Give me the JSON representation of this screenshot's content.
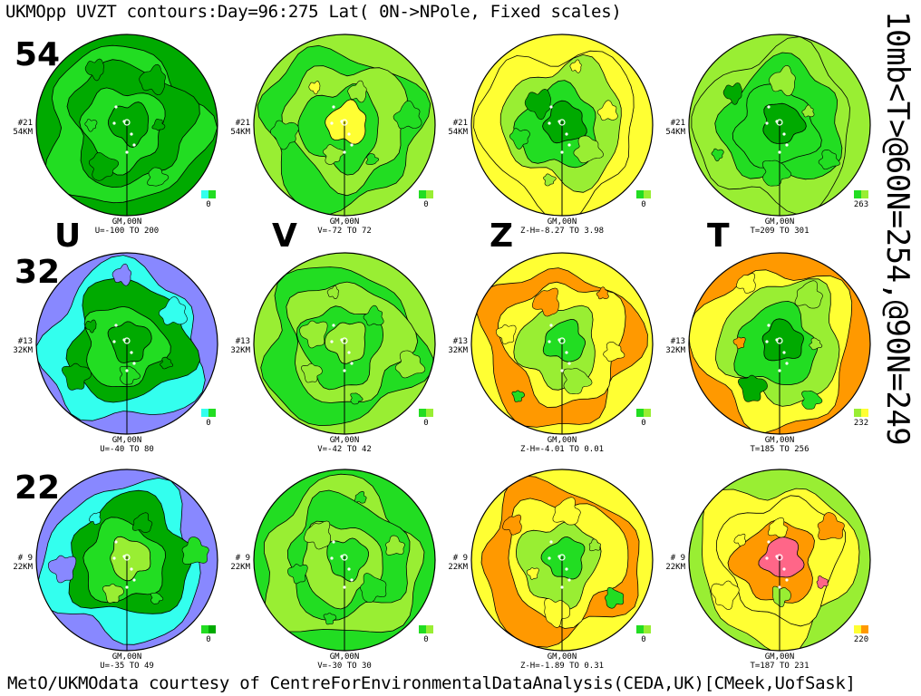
{
  "header": {
    "title": "UKMOpp UVZT contours:Day=96:275 Lat( 0N->NPole, Fixed scales)"
  },
  "side_label": "10mb<T>@60N=254,@90N=249",
  "footer": {
    "credit": "MetO/UKMOdata courtesy of CentreForEnvironmentalDataAnalysis(CEDA,UK)[CMeek,UofSask]"
  },
  "variable_letters": [
    "U",
    "V",
    "Z",
    "T"
  ],
  "row_altitudes": [
    "54",
    "32",
    "22"
  ],
  "colors": {
    "cyan": "#33ffee",
    "blue": "#8888ff",
    "dark_blue": "#2222ee",
    "dark_green": "#00aa00",
    "green": "#22dd22",
    "light_green": "#99ee33",
    "yellow": "#ffff33",
    "orange": "#ff9900",
    "pink": "#ff6688"
  },
  "chart_data": [
    {
      "type": "heatmap",
      "projection": "polar-stereographic",
      "variable": "U",
      "level_code": "#21",
      "level_km": "54KM",
      "meridian_label": "GM,00N",
      "range_label": "U=-100 TO 200",
      "key_value": "0",
      "key_colors": [
        "cyan",
        "green"
      ],
      "bands": [
        "dark_green",
        "green",
        "dark_green",
        "green",
        "dark_green"
      ]
    },
    {
      "type": "heatmap",
      "projection": "polar-stereographic",
      "variable": "V",
      "level_code": "#21",
      "level_km": "54KM",
      "meridian_label": "GM,00N",
      "range_label": "V=-72 TO  72",
      "key_value": "0",
      "key_colors": [
        "green",
        "light_green"
      ],
      "bands": [
        "light_green",
        "green",
        "light_green",
        "green",
        "yellow"
      ]
    },
    {
      "type": "heatmap",
      "projection": "polar-stereographic",
      "variable": "Z",
      "level_code": "#21",
      "level_km": "54KM",
      "meridian_label": "GM,00N",
      "range_label": "Z-H=-8.27 TO 3.98",
      "key_value": "0",
      "key_colors": [
        "green",
        "light_green"
      ],
      "bands": [
        "yellow",
        "yellow",
        "light_green",
        "green",
        "dark_green"
      ]
    },
    {
      "type": "heatmap",
      "projection": "polar-stereographic",
      "variable": "T",
      "level_code": "#21",
      "level_km": "54KM",
      "meridian_label": "GM,00N",
      "range_label": "T=209 TO 301",
      "key_value": "263",
      "key_colors": [
        "green",
        "light_green"
      ],
      "bands": [
        "light_green",
        "light_green",
        "green",
        "green",
        "dark_green"
      ]
    },
    {
      "type": "heatmap",
      "projection": "polar-stereographic",
      "variable": "U",
      "level_code": "#13",
      "level_km": "32KM",
      "meridian_label": "GM,00N",
      "range_label": "U=-40 TO  80",
      "key_value": "0",
      "key_colors": [
        "cyan",
        "green"
      ],
      "bands": [
        "blue",
        "cyan",
        "dark_green",
        "green",
        "dark_green"
      ]
    },
    {
      "type": "heatmap",
      "projection": "polar-stereographic",
      "variable": "V",
      "level_code": "#13",
      "level_km": "32KM",
      "meridian_label": "GM,00N",
      "range_label": "V=-42 TO  42",
      "key_value": "0",
      "key_colors": [
        "green",
        "light_green"
      ],
      "bands": [
        "light_green",
        "green",
        "light_green",
        "green",
        "light_green"
      ]
    },
    {
      "type": "heatmap",
      "projection": "polar-stereographic",
      "variable": "Z",
      "level_code": "#13",
      "level_km": "32KM",
      "meridian_label": "GM,00N",
      "range_label": "Z-H=-4.01 TO 0.01",
      "key_value": "0",
      "key_colors": [
        "green",
        "light_green"
      ],
      "bands": [
        "yellow",
        "orange",
        "yellow",
        "light_green",
        "green"
      ]
    },
    {
      "type": "heatmap",
      "projection": "polar-stereographic",
      "variable": "T",
      "level_code": "#13",
      "level_km": "32KM",
      "meridian_label": "GM,00N",
      "range_label": "T=185 TO 256",
      "key_value": "232",
      "key_colors": [
        "light_green",
        "yellow"
      ],
      "bands": [
        "orange",
        "yellow",
        "light_green",
        "green",
        "dark_green"
      ]
    },
    {
      "type": "heatmap",
      "projection": "polar-stereographic",
      "variable": "U",
      "level_code": "# 9",
      "level_km": "22KM",
      "meridian_label": "GM,00N",
      "range_label": "U=-35 TO  49",
      "key_value": "0",
      "key_colors": [
        "green",
        "dark_green"
      ],
      "bands": [
        "blue",
        "cyan",
        "dark_green",
        "green",
        "light_green"
      ]
    },
    {
      "type": "heatmap",
      "projection": "polar-stereographic",
      "variable": "V",
      "level_code": "# 9",
      "level_km": "22KM",
      "meridian_label": "GM,00N",
      "range_label": "V=-30 TO  30",
      "key_value": "0",
      "key_colors": [
        "green",
        "light_green"
      ],
      "bands": [
        "green",
        "light_green",
        "green",
        "light_green",
        "green"
      ]
    },
    {
      "type": "heatmap",
      "projection": "polar-stereographic",
      "variable": "Z",
      "level_code": "# 9",
      "level_km": "22KM",
      "meridian_label": "GM,00N",
      "range_label": "Z-H=-1.89 TO 0.31",
      "key_value": "0",
      "key_colors": [
        "green",
        "light_green"
      ],
      "bands": [
        "yellow",
        "orange",
        "yellow",
        "light_green",
        "green"
      ]
    },
    {
      "type": "heatmap",
      "projection": "polar-stereographic",
      "variable": "T",
      "level_code": "# 9",
      "level_km": "22KM",
      "meridian_label": "GM,00N",
      "range_label": "T=187 TO 231",
      "key_value": "220",
      "key_colors": [
        "yellow",
        "orange"
      ],
      "bands": [
        "light_green",
        "yellow",
        "yellow",
        "orange",
        "pink"
      ]
    }
  ]
}
